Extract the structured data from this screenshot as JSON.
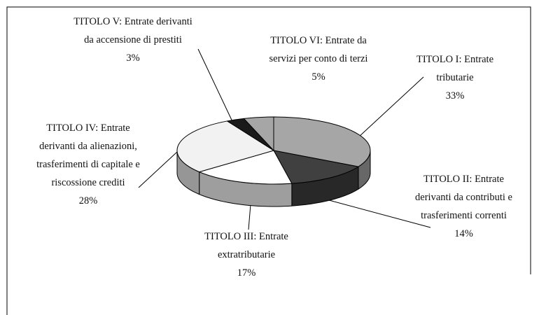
{
  "chart_data": {
    "type": "pie3d",
    "categories": [
      "TITOLO I: Entrate tributarie",
      "TITOLO II: Entrate derivanti da contributi e trasferimenti correnti",
      "TITOLO III: Entrate extratributarie",
      "TITOLO IV: Entrate derivanti da alienazioni, trasferimenti di capitale e riscossione crediti",
      "TITOLO V: Entrate derivanti da accensione di prestiti",
      "TITOLO VI: Entrate da servizi per conto di terzi"
    ],
    "values": [
      33,
      14,
      17,
      28,
      3,
      5
    ],
    "value_labels": [
      "33%",
      "14%",
      "17%",
      "28%",
      "3%",
      "5%"
    ],
    "colors": [
      "#a6a6a6",
      "#404040",
      "#ffffff",
      "#f2f2f2",
      "#1a1a1a",
      "#a6a6a6"
    ]
  }
}
